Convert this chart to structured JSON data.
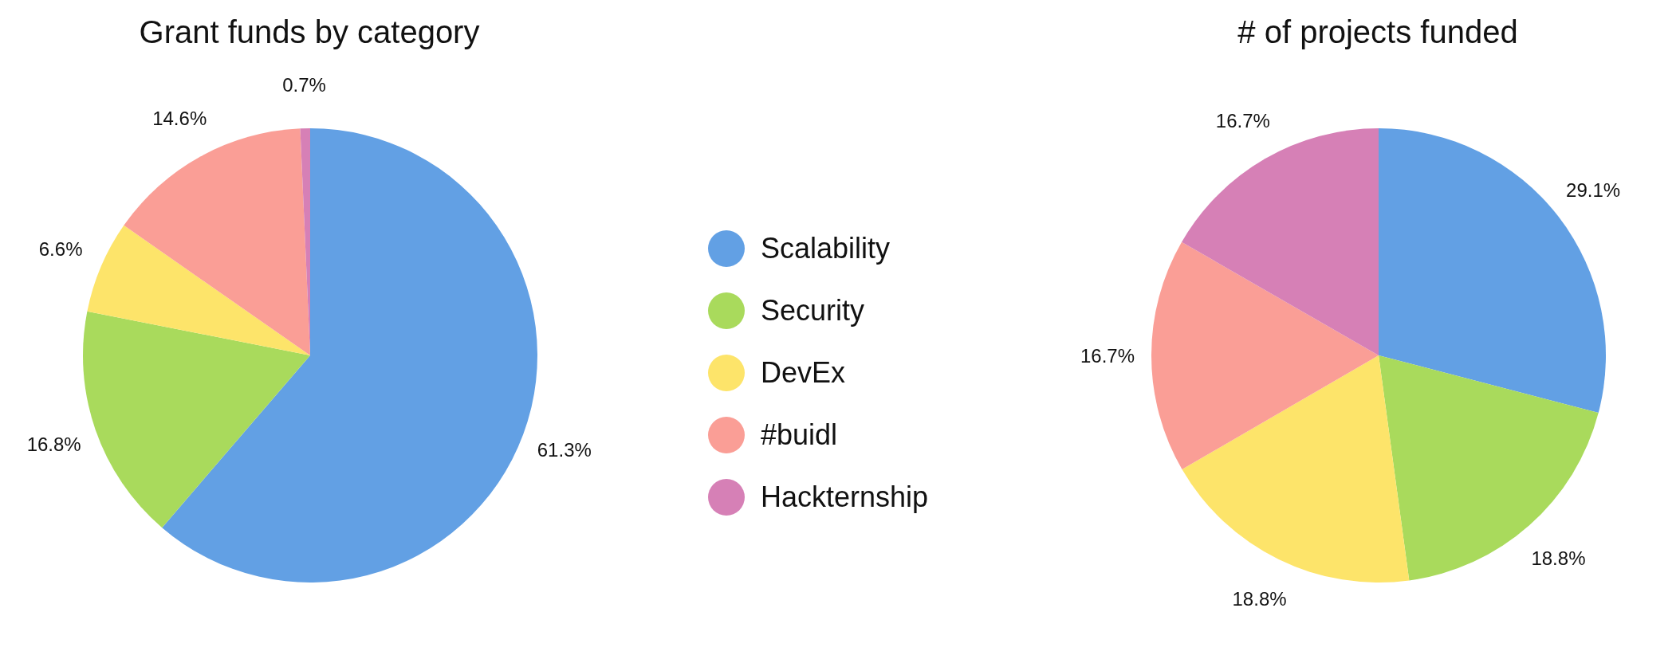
{
  "chart_data": [
    {
      "type": "pie",
      "title": "Grant funds by category",
      "categories": [
        "Scalability",
        "Security",
        "DevEx",
        "#buidl",
        "Hackternship"
      ],
      "values": [
        61.3,
        16.8,
        6.6,
        14.6,
        0.7
      ],
      "colors": [
        "#62a0e4",
        "#a9da5c",
        "#fde46a",
        "#fa9e96",
        "#d680b6"
      ],
      "value_labels": [
        "61.3%",
        "16.8%",
        "6.6%",
        "14.6%",
        "0.7%"
      ],
      "legend": "right"
    },
    {
      "type": "pie",
      "title": "# of projects funded",
      "categories": [
        null,
        null,
        null,
        null,
        null
      ],
      "values": [
        29.1,
        18.8,
        18.8,
        16.7,
        16.7
      ],
      "colors": [
        "#62a0e4",
        "#a9da5c",
        "#fde46a",
        "#fa9e96",
        "#d680b6"
      ],
      "value_labels": [
        "29.1%",
        "18.8%",
        "18.8%",
        "16.7%",
        "16.7%"
      ]
    }
  ]
}
